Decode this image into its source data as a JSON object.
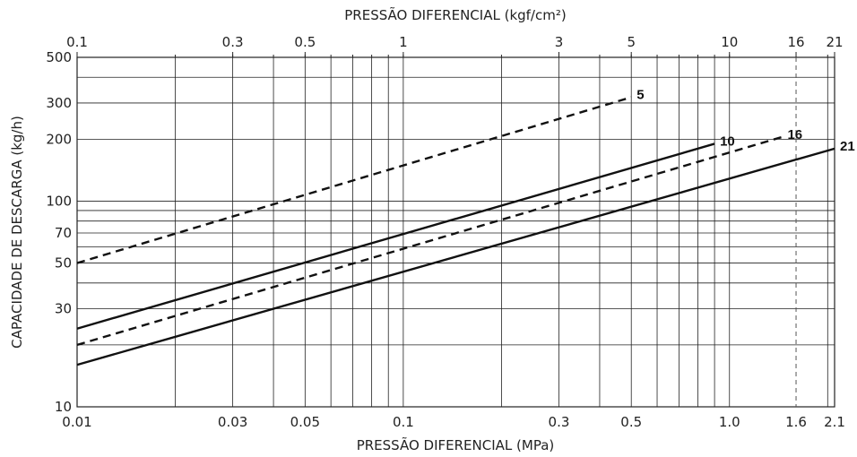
{
  "chart_data": {
    "type": "line",
    "title": "",
    "xlabel": "PRESSÃO DIFERENCIAL (MPa)",
    "x2label": "PRESSÃO DIFERENCIAL (kgf/cm²)",
    "ylabel": "CAPACIDADE DE DESCARGA (kg/h)",
    "x_scale": "log",
    "y_scale": "log",
    "xlim": [
      0.01,
      2.1
    ],
    "ylim": [
      10,
      500
    ],
    "grid": true,
    "x_ticks": [
      0.01,
      0.03,
      0.05,
      0.1,
      0.3,
      0.5,
      1.0,
      1.6,
      2.1
    ],
    "x_tick_labels": [
      "0.01",
      "0.03",
      "0.05",
      "0.1",
      "0.3",
      "0.5",
      "1.0",
      "1.6",
      "2.1"
    ],
    "x2_ticks": [
      0.1,
      0.3,
      0.5,
      1,
      3,
      5,
      10,
      16,
      21
    ],
    "x2_tick_labels": [
      "0.1",
      "0.3",
      "0.5",
      "1",
      "3",
      "5",
      "10",
      "16",
      "21"
    ],
    "y_ticks": [
      10,
      30,
      50,
      70,
      100,
      200,
      300,
      500
    ],
    "y_tick_labels": [
      "10",
      "30",
      "50",
      "70",
      "100",
      "200",
      "300",
      "500"
    ],
    "reference_line_x": 1.6,
    "series": [
      {
        "name": "5",
        "line_style": "dashed",
        "x": [
          0.01,
          0.5
        ],
        "y": [
          50,
          320
        ]
      },
      {
        "name": "10",
        "line_style": "solid",
        "x": [
          0.01,
          0.9
        ],
        "y": [
          24,
          190
        ]
      },
      {
        "name": "16",
        "line_style": "dashed",
        "x": [
          0.01,
          1.45
        ],
        "y": [
          20,
          205
        ]
      },
      {
        "name": "21",
        "line_style": "solid",
        "x": [
          0.01,
          2.1
        ],
        "y": [
          16,
          180
        ]
      }
    ]
  }
}
